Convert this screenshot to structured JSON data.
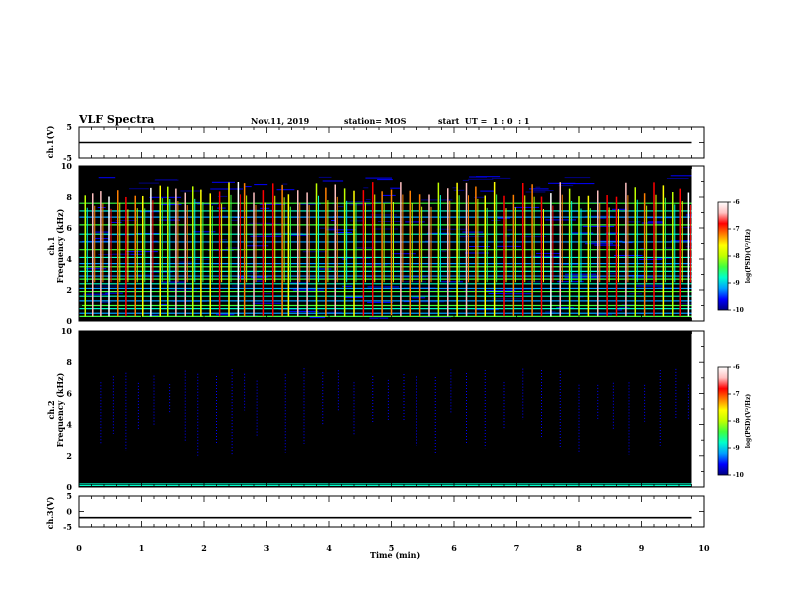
{
  "header": {
    "title": "VLF Spectra",
    "date": "Nov.11, 2019",
    "station": "station= MOS",
    "start_ut": "start  UT =  1 : 0  : 1"
  },
  "colorbar": {
    "label": "log(PSD)(V²/Hz)",
    "ticks": [
      "-6",
      "-7",
      "-8",
      "-9",
      "-10"
    ],
    "stops": [
      "#000080",
      "#0000ff",
      "#00a0ff",
      "#00ffcc",
      "#40ff40",
      "#c0ff00",
      "#ffff00",
      "#ff8000",
      "#ff0000",
      "#ffc0c0",
      "#ffffff"
    ]
  },
  "chart_data": [
    {
      "type": "line",
      "ylabel": "ch.1(V)",
      "ylim": [
        -5,
        5
      ],
      "yticks": [
        5,
        -5
      ],
      "xlim": [
        0,
        10
      ],
      "x": [
        0,
        9.8
      ],
      "y": [
        0,
        0
      ]
    },
    {
      "type": "heatmap",
      "ylabel_top": "ch.1",
      "ylabel": "Frequency (kHz)",
      "ylim": [
        0,
        10
      ],
      "yticks": [
        0,
        2,
        4,
        6,
        8,
        10
      ],
      "xlim": [
        0,
        10
      ],
      "data_xmax": 9.8,
      "zlim": [
        -10,
        -6
      ],
      "background_level": -10.5,
      "lines_khz": [
        0.3,
        0.5,
        0.8,
        1.0,
        1.3,
        1.6,
        1.9,
        2.1,
        2.4,
        2.7,
        2.9,
        3.2,
        3.5,
        3.7,
        4.1,
        4.6,
        5.1,
        5.6,
        6.2,
        6.7,
        7.1,
        7.6
      ],
      "bursts_min": [
        0.1,
        0.22,
        0.35,
        0.48,
        0.62,
        0.75,
        0.9,
        1.02,
        1.15,
        1.3,
        1.42,
        1.55,
        1.7,
        1.82,
        1.95,
        2.1,
        2.25,
        2.4,
        2.55,
        2.65,
        2.8,
        2.95,
        3.1,
        3.25,
        3.35,
        3.5,
        3.65,
        3.8,
        3.95,
        4.1,
        4.25,
        4.4,
        4.55,
        4.7,
        4.85,
        5.0,
        5.15,
        5.3,
        5.45,
        5.6,
        5.75,
        5.9,
        6.05,
        6.2,
        6.35,
        6.5,
        6.65,
        6.8,
        6.95,
        7.1,
        7.25,
        7.4,
        7.55,
        7.7,
        7.85,
        8.0,
        8.15,
        8.3,
        8.45,
        8.6,
        8.75,
        8.9,
        9.05,
        9.2,
        9.35,
        9.5,
        9.62,
        9.75
      ]
    },
    {
      "type": "heatmap",
      "ylabel_top": "ch.2",
      "ylabel": "Frequency (kHz)",
      "ylim": [
        0,
        10
      ],
      "yticks": [
        0,
        2,
        4,
        6,
        8,
        10
      ],
      "xlim": [
        0,
        10
      ],
      "data_xmax": 9.8,
      "zlim": [
        -10,
        -6
      ],
      "background_level": -11,
      "lines_khz": [
        0.1,
        0.2
      ],
      "bursts_min": [
        0.35,
        0.55,
        0.75,
        0.95,
        1.2,
        1.45,
        1.7,
        1.9,
        2.2,
        2.45,
        2.65,
        2.85,
        3.3,
        3.6,
        3.9,
        4.15,
        4.4,
        4.7,
        4.95,
        5.2,
        5.4,
        5.7,
        5.95,
        6.2,
        6.5,
        6.8,
        7.1,
        7.4,
        7.7,
        8.0,
        8.3,
        8.55,
        8.8,
        9.05,
        9.3,
        9.55,
        9.75
      ]
    },
    {
      "type": "line",
      "ylabel": "ch.3(V)",
      "ylim": [
        -5,
        5
      ],
      "yticks": [
        5,
        0,
        -5
      ],
      "xlim": [
        0,
        10
      ],
      "xticks": [
        0,
        1,
        2,
        3,
        4,
        5,
        6,
        7,
        8,
        9,
        10
      ],
      "xlabel": "Time (min)",
      "x": [
        0,
        9.8
      ],
      "y": [
        -2,
        -2
      ]
    }
  ]
}
